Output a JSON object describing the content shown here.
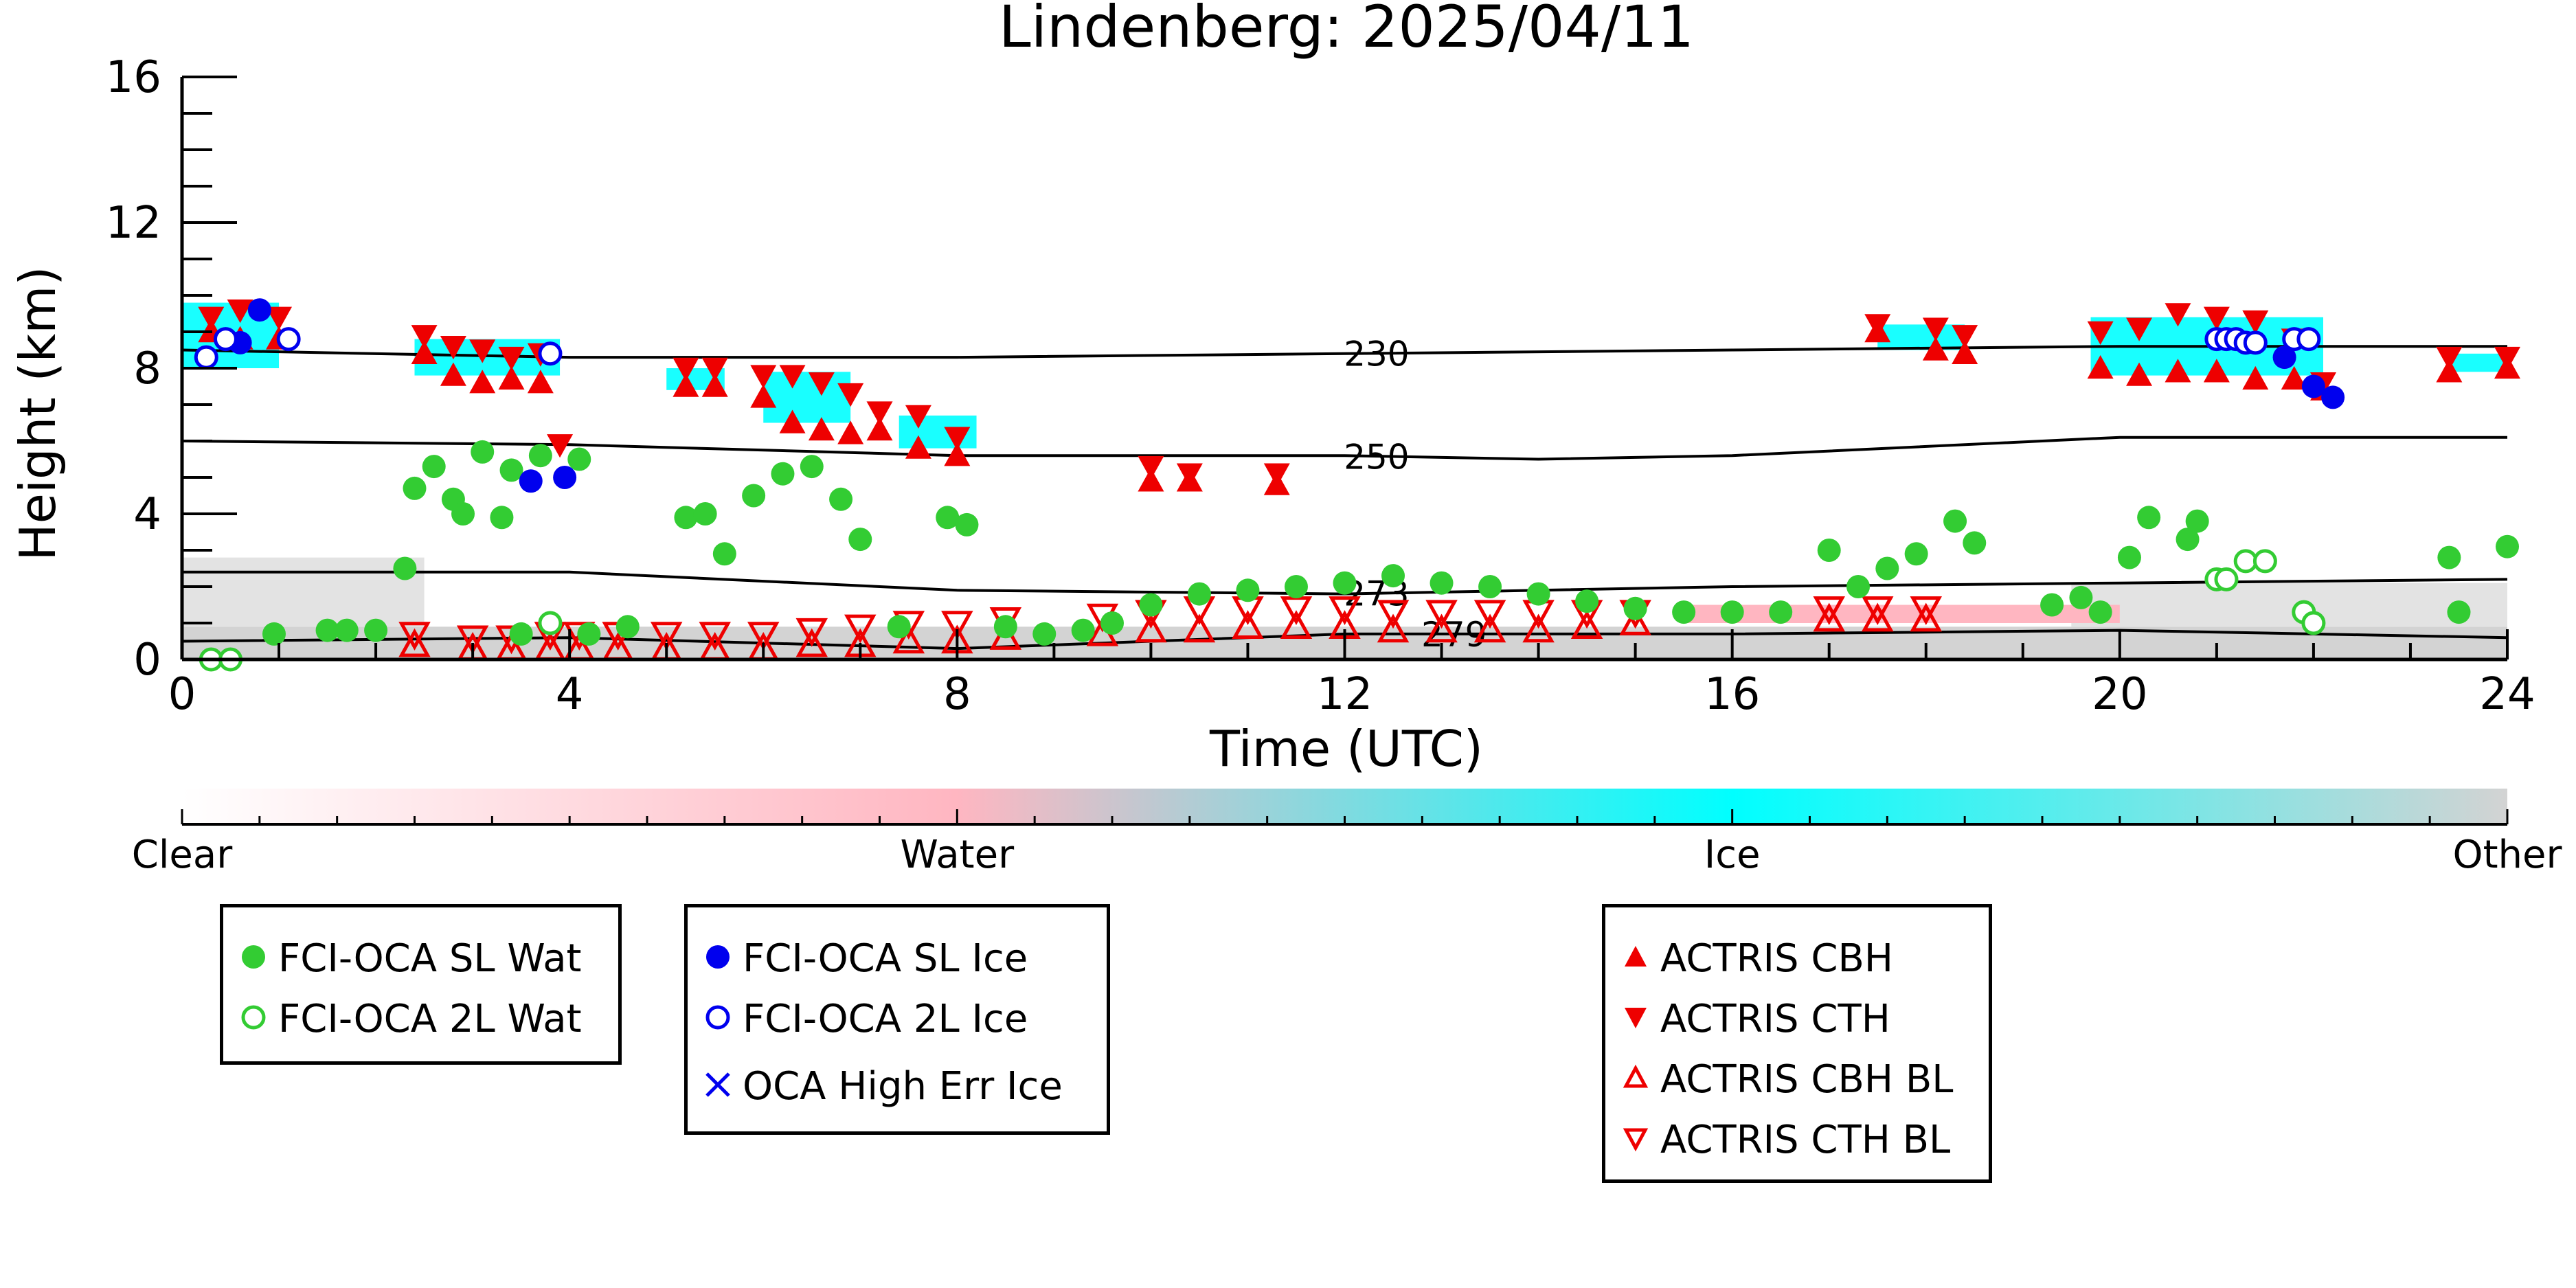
{
  "chart_data": {
    "type": "scatter",
    "title": "Lindenberg: 2025/04/11",
    "xlabel": "Time (UTC)",
    "ylabel": "Height (km)",
    "xlim": [
      0,
      24
    ],
    "ylim": [
      0,
      16
    ],
    "x_ticks": [
      "0",
      "4",
      "8",
      "12",
      "16",
      "20",
      "24"
    ],
    "y_ticks": [
      "0",
      "4",
      "8",
      "12",
      "16"
    ],
    "grid": false,
    "colorbar": {
      "labels": [
        "Clear",
        "Water",
        "Ice",
        "Other"
      ],
      "colors": [
        "#ffffff",
        "#ffb6c1",
        "#00ffff",
        "#d3d3d3"
      ]
    },
    "isotherms": [
      {
        "label": "230",
        "x": [
          0,
          4,
          8,
          12,
          16,
          20,
          24
        ],
        "y": [
          8.5,
          8.3,
          8.3,
          8.4,
          8.5,
          8.6,
          8.6
        ]
      },
      {
        "label": "250",
        "x": [
          0,
          4,
          8,
          12,
          14,
          16,
          20,
          24
        ],
        "y": [
          6.0,
          5.9,
          5.6,
          5.6,
          5.5,
          5.6,
          6.1,
          6.1
        ]
      },
      {
        "label": "273",
        "x": [
          0,
          4,
          8,
          12,
          16,
          20,
          24
        ],
        "y": [
          2.4,
          2.4,
          1.9,
          1.8,
          2.0,
          2.1,
          2.2
        ]
      },
      {
        "label": "279",
        "x": [
          0,
          4,
          8,
          10,
          12,
          16,
          20,
          24
        ],
        "y": [
          0.5,
          0.6,
          0.3,
          0.5,
          0.7,
          0.7,
          0.8,
          0.6
        ]
      }
    ],
    "series": [
      {
        "name": "FCI-OCA SL Wat",
        "color": "#33cc33",
        "marker": "filled-circle",
        "x": [
          0.95,
          1.5,
          1.7,
          2.0,
          2.3,
          2.4,
          2.6,
          2.8,
          2.9,
          3.1,
          3.3,
          3.4,
          3.5,
          3.7,
          4.1,
          4.2,
          4.6,
          5.2,
          5.4,
          5.6,
          5.9,
          6.2,
          6.5,
          6.8,
          7.0,
          7.4,
          7.9,
          8.1,
          8.5,
          8.9,
          9.3,
          9.6,
          10.0,
          10.5,
          11.0,
          11.5,
          12.0,
          12.5,
          13.0,
          13.5,
          14.0,
          14.5,
          15.0,
          15.5,
          16.0,
          16.5,
          17.0,
          17.3,
          17.6,
          17.9,
          18.3,
          18.5,
          19.3,
          19.6,
          19.8,
          20.1,
          20.3,
          20.7,
          20.8,
          23.4,
          23.5,
          24.0
        ],
        "y": [
          0.7,
          0.8,
          0.8,
          0.8,
          2.5,
          4.7,
          5.3,
          4.4,
          4.0,
          5.7,
          3.9,
          5.2,
          0.7,
          5.6,
          5.5,
          0.7,
          0.9,
          3.9,
          4.0,
          2.9,
          4.5,
          5.1,
          5.3,
          4.4,
          3.3,
          0.9,
          3.9,
          3.7,
          0.9,
          0.7,
          0.8,
          1.0,
          1.5,
          1.8,
          1.9,
          2.0,
          2.1,
          2.3,
          2.1,
          2.0,
          1.8,
          1.6,
          1.4,
          1.3,
          1.3,
          1.3,
          3.0,
          2.0,
          2.5,
          2.9,
          3.8,
          3.2,
          1.5,
          1.7,
          1.3,
          2.8,
          3.9,
          3.3,
          3.8,
          2.8,
          1.3,
          3.1
        ]
      },
      {
        "name": "FCI-OCA 2L Wat",
        "color": "#33cc33",
        "marker": "open-circle",
        "x": [
          0.3,
          0.5,
          3.8,
          21.0,
          21.1,
          21.3,
          21.5,
          21.9,
          22.0
        ],
        "y": [
          0.0,
          0.0,
          1.0,
          2.2,
          2.2,
          2.7,
          2.7,
          1.3,
          1.0
        ]
      },
      {
        "name": "FCI-OCA SL Ice",
        "color": "#0000ee",
        "marker": "filled-circle",
        "x": [
          0.6,
          0.8,
          3.6,
          3.95,
          21.7,
          22.0,
          22.2
        ],
        "y": [
          8.7,
          9.6,
          4.9,
          5.0,
          8.3,
          7.5,
          7.2
        ]
      },
      {
        "name": "FCI-OCA 2L Ice",
        "color": "#0000ee",
        "marker": "open-circle",
        "x": [
          0.25,
          0.45,
          1.1,
          3.8,
          21.0,
          21.1,
          21.2,
          21.3,
          21.4,
          21.8,
          21.95
        ],
        "y": [
          8.3,
          8.8,
          8.8,
          8.4,
          8.8,
          8.8,
          8.8,
          8.7,
          8.7,
          8.8,
          8.8
        ]
      },
      {
        "name": "OCA High Err Ice",
        "color": "#0000ee",
        "marker": "x",
        "x": [],
        "y": []
      },
      {
        "name": "ACTRIS CBH",
        "color": "#ee0000",
        "marker": "triangle-up",
        "x": [
          0.3,
          0.6,
          1.0,
          2.5,
          2.8,
          3.1,
          3.4,
          3.7,
          5.2,
          5.5,
          6.0,
          6.3,
          6.6,
          6.9,
          7.2,
          7.6,
          8.0,
          10.0,
          10.4,
          11.3,
          17.5,
          18.1,
          18.4,
          19.8,
          20.2,
          20.6,
          21.0,
          21.4,
          21.8,
          22.1,
          23.4,
          24.0
        ],
        "y": [
          9.0,
          8.8,
          8.8,
          8.4,
          7.8,
          7.6,
          7.7,
          7.6,
          7.5,
          7.5,
          7.2,
          6.5,
          6.3,
          6.2,
          6.3,
          5.8,
          5.6,
          4.9,
          4.9,
          4.8,
          9.0,
          8.5,
          8.4,
          8.0,
          7.8,
          7.9,
          7.9,
          7.7,
          7.7,
          7.4,
          7.9,
          8.0
        ]
      },
      {
        "name": "ACTRIS CTH",
        "color": "#ee0000",
        "marker": "triangle-down",
        "x": [
          0.3,
          0.6,
          1.0,
          2.5,
          2.8,
          3.1,
          3.4,
          3.7,
          3.9,
          5.2,
          5.5,
          6.0,
          6.3,
          6.6,
          6.9,
          7.2,
          7.6,
          8.0,
          10.0,
          10.4,
          11.3,
          17.5,
          18.1,
          18.4,
          19.8,
          20.2,
          20.6,
          21.0,
          21.4,
          21.8,
          22.1,
          23.4,
          24.0
        ],
        "y": [
          9.4,
          9.6,
          9.4,
          8.9,
          8.6,
          8.5,
          8.3,
          8.4,
          5.9,
          8.0,
          8.0,
          7.8,
          7.8,
          7.6,
          7.3,
          6.8,
          6.7,
          6.1,
          5.3,
          5.1,
          5.1,
          9.2,
          9.1,
          8.9,
          9.0,
          9.1,
          9.5,
          9.4,
          9.3,
          8.8,
          7.6,
          8.3,
          8.3
        ]
      },
      {
        "name": "ACTRIS CBH BL",
        "color": "#ee0000",
        "marker": "open-triangle-up",
        "x": [
          2.4,
          3.0,
          3.4,
          3.8,
          4.1,
          4.5,
          5.0,
          5.5,
          6.0,
          6.5,
          7.0,
          7.5,
          8.0,
          8.5,
          9.5,
          10.0,
          10.5,
          11.0,
          11.5,
          12.0,
          12.5,
          13.0,
          13.5,
          14.0,
          14.5,
          15.0,
          17.0,
          17.5,
          18.0
        ],
        "y": [
          0.4,
          0.3,
          0.3,
          0.3,
          0.3,
          0.3,
          0.3,
          0.3,
          0.3,
          0.4,
          0.4,
          0.5,
          0.5,
          0.6,
          0.7,
          0.8,
          0.8,
          0.9,
          0.9,
          0.9,
          0.8,
          0.8,
          0.8,
          0.8,
          0.9,
          1.0,
          1.1,
          1.1,
          1.1
        ]
      },
      {
        "name": "ACTRIS CTH BL",
        "color": "#ee0000",
        "marker": "open-triangle-down",
        "x": [
          2.4,
          3.0,
          3.4,
          3.8,
          4.1,
          4.5,
          5.0,
          5.5,
          6.0,
          6.5,
          7.0,
          7.5,
          8.0,
          8.5,
          9.5,
          10.0,
          10.5,
          11.0,
          11.5,
          12.0,
          12.5,
          13.0,
          13.5,
          14.0,
          14.5,
          15.0,
          17.0,
          17.5,
          18.0
        ],
        "y": [
          0.7,
          0.6,
          0.6,
          0.7,
          0.7,
          0.7,
          0.7,
          0.7,
          0.7,
          0.8,
          0.9,
          1.0,
          1.0,
          1.1,
          1.2,
          1.3,
          1.4,
          1.4,
          1.4,
          1.4,
          1.3,
          1.3,
          1.3,
          1.3,
          1.3,
          1.3,
          1.4,
          1.4,
          1.4
        ]
      }
    ]
  },
  "legends": {
    "box1": [
      "FCI-OCA SL Wat",
      "FCI-OCA 2L Wat"
    ],
    "box2": [
      "FCI-OCA SL Ice",
      "FCI-OCA 2L Ice",
      "OCA High Err Ice"
    ],
    "box3": [
      "ACTRIS CBH",
      "ACTRIS CTH",
      "ACTRIS CBH BL",
      "ACTRIS CTH BL"
    ]
  }
}
